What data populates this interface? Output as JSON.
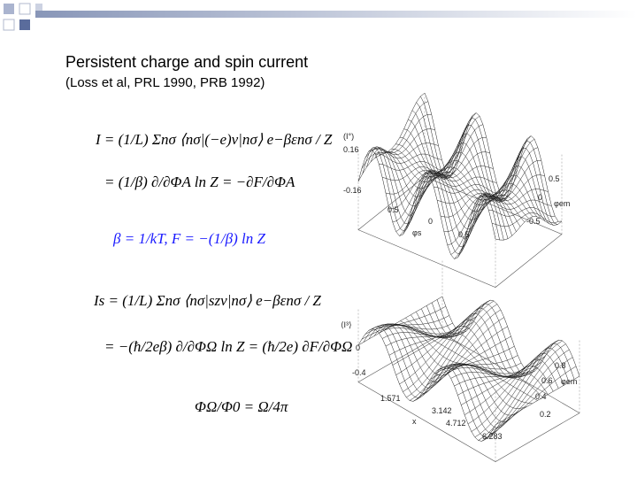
{
  "header": {
    "title": "Persistent charge and spin current",
    "subtitle": "(Loss et al, PRL 1990, PRB 1992)"
  },
  "equations": [
    "I = (1/L) Σnσ ⟨nσ|(−e)v|nσ⟩ e−βεnσ / Z",
    "= (1/β) ∂/∂ΦA ln Z = −∂F/∂ΦA",
    "β = 1/kT, F = −(1/β) ln Z",
    "Is = (1/L) Σnσ ⟨nσ|szv|nσ⟩ e−βεnσ / Z",
    "= −(ħ/2eβ) ∂/∂ΦΩ ln Z = (ħ/2e) ∂F/∂ΦΩ",
    "ΦΩ/Φ0 = Ω/4π"
  ],
  "plots": [
    {
      "labels": [
        "(I°)",
        "0.16",
        "-0.16",
        "0.5",
        "0",
        "φs",
        "0.5",
        "0",
        "0.5",
        "-0.5",
        "φem"
      ]
    },
    {
      "labels": [
        "⟨I³⟩",
        "0",
        "-0.4",
        "0.8",
        "0.6",
        "0.4",
        "0.2",
        "1.571",
        "3.142",
        "4.712",
        "6.283",
        "x",
        "φem"
      ]
    }
  ]
}
